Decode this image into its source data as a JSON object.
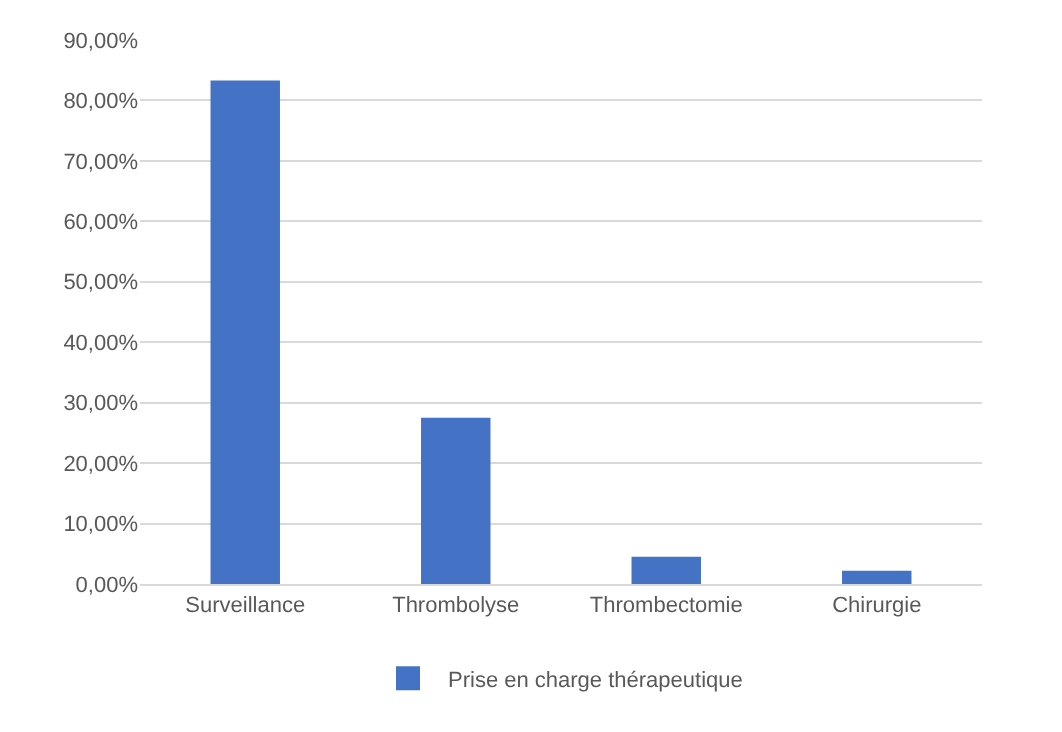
{
  "chart_data": {
    "type": "bar",
    "categories": [
      "Surveillance",
      "Thrombolyse",
      "Thrombectomie",
      "Chirurgie"
    ],
    "series": [
      {
        "name": "Prise en charge thérapeutique",
        "color": "#4472c4",
        "values": [
          83.3,
          27.5,
          4.5,
          2.2
        ]
      }
    ],
    "ylim": [
      0,
      90
    ],
    "yticks": [
      {
        "value": 0,
        "label": "0,00%"
      },
      {
        "value": 10,
        "label": "10,00%"
      },
      {
        "value": 20,
        "label": "20,00%"
      },
      {
        "value": 30,
        "label": "30,00%"
      },
      {
        "value": 40,
        "label": "40,00%"
      },
      {
        "value": 50,
        "label": "50,00%"
      },
      {
        "value": 60,
        "label": "60,00%"
      },
      {
        "value": 70,
        "label": "70,00%"
      },
      {
        "value": 80,
        "label": "80,00%"
      },
      {
        "value": 90,
        "label": "90,00%"
      }
    ],
    "grid": "y",
    "legend": "bottom"
  }
}
